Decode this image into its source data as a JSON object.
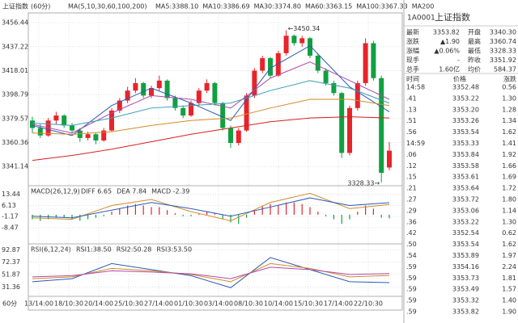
{
  "chart_data": {
    "type": "candlestick",
    "title": "上证指数",
    "period": "(60分)",
    "ma_header": "MA(5,10,30,60,100,200)",
    "ma_legend": [
      {
        "label": "MA5:3388.10",
        "color": "#6a7fa8"
      },
      {
        "label": "MA10:3386.69",
        "color": "#d28a2a"
      },
      {
        "label": "MA30:3374.80",
        "color": "#b04aa8"
      },
      {
        "label": "MA60:3363.15",
        "color": "#3a9ab8"
      },
      {
        "label": "MA100:3367.33",
        "color": "#444444"
      },
      {
        "label": "MA200",
        "color": "#d81e1e"
      }
    ],
    "up_color": "#e8232a",
    "down_color": "#10a040",
    "ylim": [
      3327,
      3463
    ],
    "yticks": [
      3456.44,
      3437.22,
      3418.01,
      3398.79,
      3379.57,
      3360.36,
      3341.14
    ],
    "candles": [
      [
        3378,
        3381,
        3368,
        3372
      ],
      [
        3372,
        3375,
        3364,
        3366
      ],
      [
        3366,
        3380,
        3365,
        3378
      ],
      [
        3378,
        3385,
        3375,
        3382
      ],
      [
        3382,
        3383,
        3372,
        3374
      ],
      [
        3374,
        3376,
        3368,
        3370
      ],
      [
        3370,
        3372,
        3361,
        3364
      ],
      [
        3364,
        3369,
        3362,
        3367
      ],
      [
        3367,
        3368,
        3359,
        3362
      ],
      [
        3362,
        3372,
        3361,
        3370
      ],
      [
        3370,
        3388,
        3369,
        3386
      ],
      [
        3386,
        3396,
        3384,
        3394
      ],
      [
        3394,
        3405,
        3392,
        3402
      ],
      [
        3402,
        3412,
        3400,
        3408
      ],
      [
        3408,
        3409,
        3396,
        3398
      ],
      [
        3398,
        3406,
        3396,
        3404
      ],
      [
        3404,
        3414,
        3402,
        3410
      ],
      [
        3410,
        3411,
        3394,
        3396
      ],
      [
        3396,
        3398,
        3386,
        3388
      ],
      [
        3388,
        3390,
        3380,
        3382
      ],
      [
        3382,
        3394,
        3381,
        3392
      ],
      [
        3392,
        3404,
        3390,
        3402
      ],
      [
        3402,
        3411,
        3400,
        3408
      ],
      [
        3408,
        3409,
        3390,
        3392
      ],
      [
        3392,
        3393,
        3370,
        3372
      ],
      [
        3372,
        3374,
        3356,
        3360
      ],
      [
        3360,
        3372,
        3358,
        3370
      ],
      [
        3370,
        3400,
        3369,
        3398
      ],
      [
        3398,
        3420,
        3396,
        3418
      ],
      [
        3418,
        3430,
        3416,
        3428
      ],
      [
        3428,
        3429,
        3412,
        3414
      ],
      [
        3414,
        3434,
        3413,
        3432
      ],
      [
        3432,
        3450.34,
        3430,
        3446
      ],
      [
        3446,
        3447,
        3438,
        3440
      ],
      [
        3440,
        3446,
        3437,
        3444
      ],
      [
        3444,
        3445,
        3428,
        3430
      ],
      [
        3430,
        3432,
        3416,
        3418
      ],
      [
        3418,
        3420,
        3406,
        3408
      ],
      [
        3408,
        3410,
        3398,
        3400
      ],
      [
        3400,
        3401,
        3348,
        3352
      ],
      [
        3352,
        3390,
        3350,
        3388
      ],
      [
        3388,
        3410,
        3386,
        3408
      ],
      [
        3408,
        3444,
        3406,
        3440
      ],
      [
        3440,
        3442,
        3410,
        3412
      ],
      [
        3412,
        3414,
        3328.33,
        3336
      ],
      [
        3340.3,
        3360.74,
        3338,
        3353.82
      ]
    ],
    "ma_x": [
      0,
      5,
      10,
      15,
      20,
      25,
      30,
      35,
      40,
      45
    ],
    "ma_series": [
      {
        "color": "#2a5ab8",
        "values": [
          3374,
          3366,
          3390,
          3404,
          3392,
          3378,
          3420,
          3438,
          3405,
          3385
        ]
      },
      {
        "color": "#b04aa8",
        "values": [
          3375,
          3368,
          3384,
          3398,
          3395,
          3388,
          3412,
          3425,
          3410,
          3395
        ]
      },
      {
        "color": "#3a9ab8",
        "values": [
          3376,
          3374,
          3380,
          3388,
          3390,
          3392,
          3402,
          3410,
          3404,
          3392
        ]
      },
      {
        "color": "#d28a2a",
        "values": [
          3368,
          3367,
          3369,
          3374,
          3378,
          3380,
          3388,
          3395,
          3395,
          3390
        ]
      },
      {
        "color": "#d81e1e",
        "values": [
          3346,
          3350,
          3355,
          3361,
          3367,
          3372,
          3377,
          3380,
          3381,
          3380
        ]
      }
    ],
    "high_label": "←3450.34",
    "low_label": "3328.33→",
    "x_labels": [
      "13/14:00",
      "18/10:30",
      "20/14:00",
      "25/10:30",
      "27/14:00",
      "01/10:30",
      "03/14:00",
      "08/10:30",
      "10/14:00",
      "15/10:30",
      "17/14:00",
      "22/10:30"
    ],
    "period_label": "60分",
    "macd": {
      "title": "MACD(26,12,9)",
      "legend": [
        {
          "label": "DIFF 6.65",
          "color": "#d28a2a"
        },
        {
          "label": "DEA 7.84",
          "color": "#2a5ab8"
        },
        {
          "label": "MACD -2.39",
          "color": "#b04aa8"
        }
      ],
      "ylim": [
        -18,
        17.9
      ],
      "yticks": [
        13.44,
        6.13,
        -1.17,
        -8.47
      ],
      "histogram": [
        -3,
        -4,
        -3,
        -2,
        -2,
        -3,
        -4,
        -3,
        -2,
        -1,
        2,
        4,
        6,
        7,
        6,
        5,
        5,
        3,
        1,
        -1,
        -1,
        1,
        2,
        1,
        -3,
        -5,
        -6,
        -2,
        3,
        6,
        7,
        6,
        8,
        8,
        7,
        5,
        2,
        -1,
        -3,
        -6,
        -3,
        2,
        6,
        4,
        -2,
        -2.39
      ],
      "lines": [
        {
          "color": "#d28a2a",
          "values": [
            -2,
            -3,
            6,
            10,
            2,
            -4,
            8,
            14,
            4,
            6.65
          ]
        },
        {
          "color": "#2a5ab8",
          "values": [
            -1,
            -2,
            3,
            8,
            4,
            -1,
            5,
            11,
            6,
            7.84
          ]
        }
      ]
    },
    "rsi": {
      "title": "RSI(6,12,24)",
      "legend": [
        {
          "label": "RSI1:38.50",
          "color": "#2a5ab8"
        },
        {
          "label": "RSI2:50.28",
          "color": "#d28a2a"
        },
        {
          "label": "RSI3:53.50",
          "color": "#b04aa8"
        }
      ],
      "ylim": [
        17,
        100
      ],
      "yticks": [
        92.87,
        72.37,
        51.87,
        31.36
      ],
      "lines": [
        {
          "color": "#2a5ab8",
          "values": [
            40,
            45,
            70,
            60,
            50,
            30,
            80,
            60,
            40,
            38.5
          ]
        },
        {
          "color": "#d28a2a",
          "values": [
            45,
            48,
            62,
            58,
            52,
            40,
            70,
            62,
            48,
            50.28
          ]
        },
        {
          "color": "#b04aa8",
          "values": [
            48,
            50,
            58,
            56,
            53,
            45,
            64,
            60,
            52,
            53.5
          ]
        }
      ]
    }
  },
  "quote_panel": {
    "code": "1A0001",
    "name": "上证指数",
    "rows": [
      [
        "最新",
        "3353.82",
        "开盘",
        "3340.30"
      ],
      [
        "涨跌",
        "▲1.90",
        "最高",
        "3360.74"
      ],
      [
        "涨幅",
        "▲0.06%",
        "最低",
        "3328.33"
      ],
      [
        "现手",
        "-",
        "昨收",
        "3351.92"
      ],
      [
        "总手",
        "1.60亿",
        "均价",
        "584.37"
      ]
    ],
    "row_colors": [
      [
        "#e8232a",
        "#10a040"
      ],
      [
        "#e8232a",
        "#e8232a"
      ],
      [
        "#e8232a",
        "#10a040"
      ],
      [
        "#333333",
        "#333333"
      ],
      [
        "#e8232a",
        "#333333"
      ]
    ],
    "table_header": [
      "时间",
      "价格",
      "涨跌"
    ],
    "tick_color": "#e8232a",
    "ticks": [
      [
        "14:58",
        "3352.48",
        "0.56"
      ],
      [
        ".41",
        "3353.22",
        "1.30"
      ],
      [
        ".13",
        "3353.20",
        "1.28"
      ],
      [
        ".51",
        "3353.26",
        "1.34"
      ],
      [
        ".56",
        "3353.54",
        "1.62"
      ],
      [
        "14:59",
        "3353.33",
        "1.41"
      ],
      [
        ".06",
        "3353.84",
        "1.92"
      ],
      [
        ".12",
        "3353.58",
        "1.66"
      ],
      [
        ".15",
        "3353.61",
        "1.69"
      ],
      [
        ".21",
        "3353.64",
        "1.72"
      ],
      [
        ".27",
        "3353.72",
        "1.80"
      ],
      [
        ".29",
        "3353.06",
        "1.14"
      ],
      [
        ".36",
        "3353.22",
        "1.30"
      ],
      [
        ".42",
        "3352.54",
        "0.62"
      ],
      [
        ".50",
        "3353.54",
        "1.62"
      ],
      [
        ".54",
        "3353.89",
        "1.97"
      ],
      [
        ".59",
        "3354.16",
        "2.24"
      ],
      [
        ".59",
        "3353.73",
        "1.81"
      ],
      [
        ".59",
        "3353.49",
        "1.57"
      ],
      [
        ".59",
        "3353.32",
        "1.40"
      ],
      [
        ".59",
        "3353.82",
        "1.90"
      ]
    ]
  }
}
